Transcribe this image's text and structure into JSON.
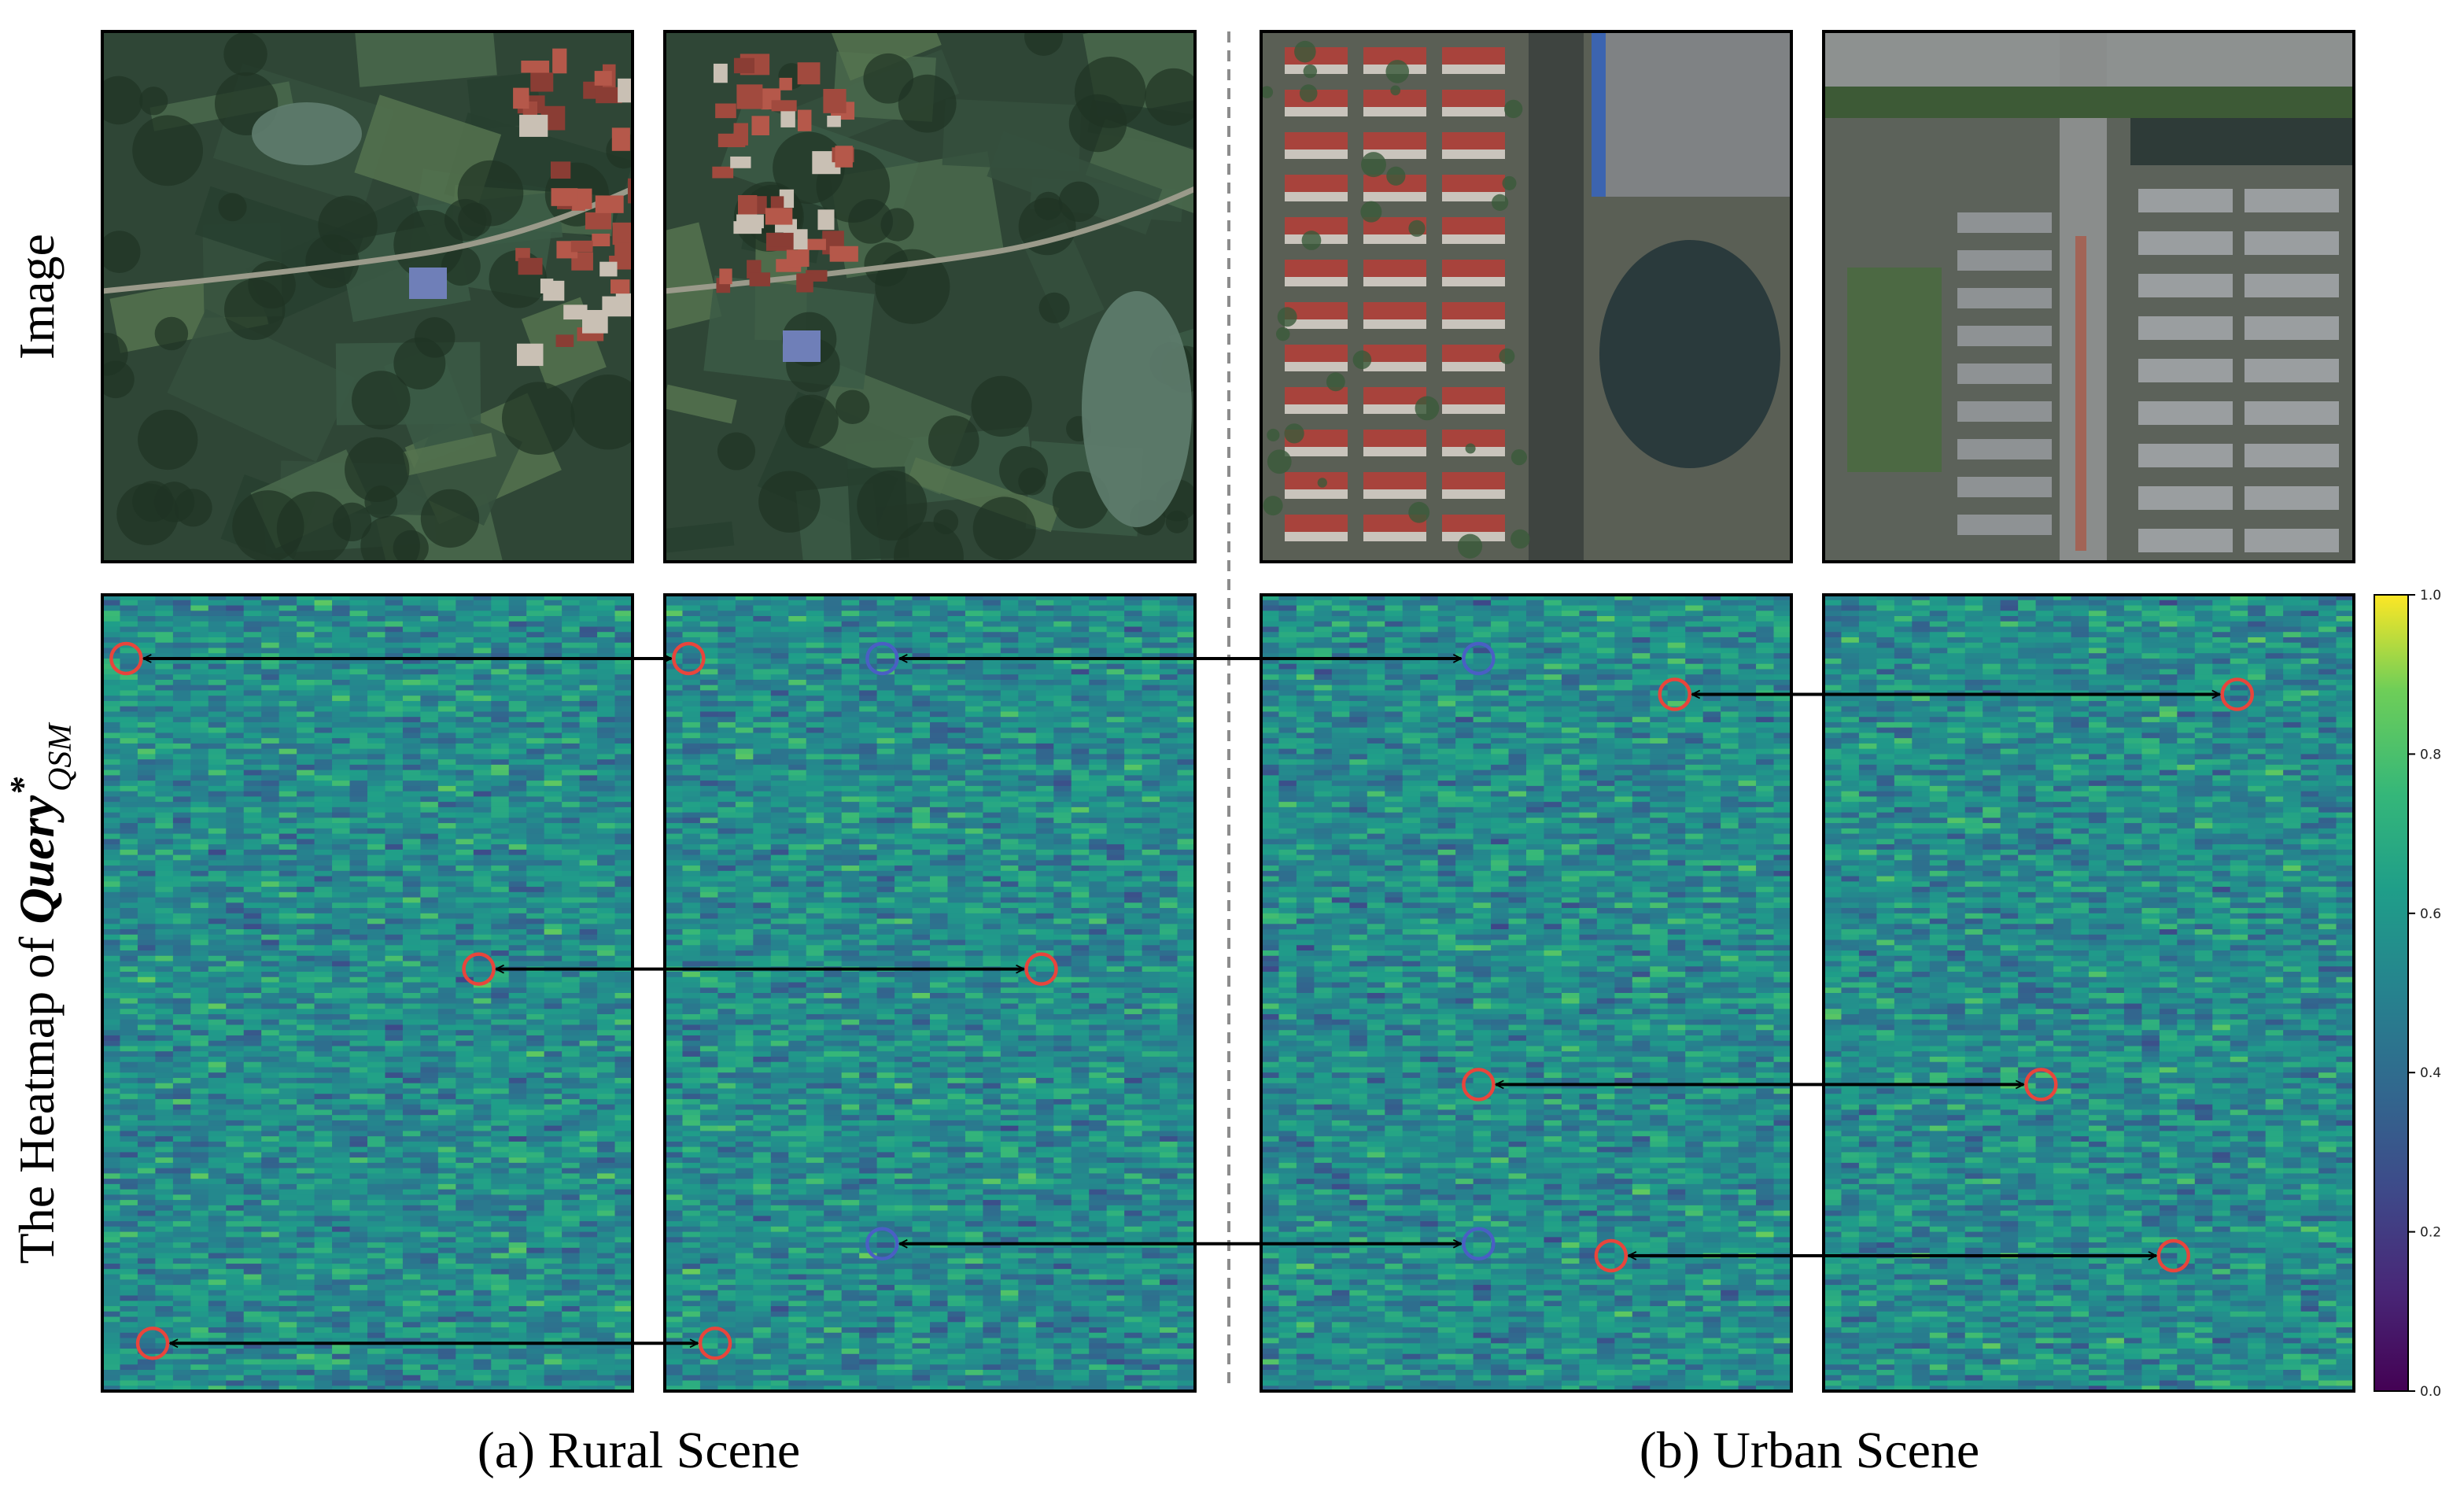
{
  "row_labels": {
    "image": "Image",
    "heatmap_prefix": "The Heatmap of ",
    "heatmap_symbol": "Query",
    "heatmap_superscript": "*",
    "heatmap_subscript": "QSM"
  },
  "captions": {
    "rural": "(a) Rural Scene",
    "urban": "(b) Urban Scene"
  },
  "scenes": [
    {
      "group": "rural",
      "name": "rural-1",
      "kind": "rural"
    },
    {
      "group": "rural",
      "name": "rural-2",
      "kind": "rural"
    },
    {
      "group": "urban",
      "name": "urban-1",
      "kind": "urban-a"
    },
    {
      "group": "urban",
      "name": "urban-2",
      "kind": "urban-b"
    }
  ],
  "colorbar": {
    "colormap": "viridis",
    "range": [
      0.0,
      1.0
    ],
    "ticks": [
      "1.0",
      "0.8",
      "0.6",
      "0.4",
      "0.2",
      "0.0"
    ]
  },
  "colors": {
    "red_marker": "#e8453c",
    "blue_marker": "#4a5fc4",
    "arrow": "#000000",
    "divider": "#8c8c8c"
  },
  "correspondences": [
    {
      "from": "rural-1",
      "to": "rural-2",
      "marker": "red",
      "row": 0.08
    },
    {
      "from": "rural-2",
      "to": "urban-1",
      "marker": "blue",
      "row": 0.08
    },
    {
      "from": "urban-1",
      "to": "urban-2",
      "marker": "red",
      "row": 0.125
    },
    {
      "from": "rural-1",
      "to": "rural-2",
      "marker": "red",
      "row": 0.47
    },
    {
      "from": "urban-1",
      "to": "urban-2",
      "marker": "red",
      "row": 0.615
    },
    {
      "from": "rural-2",
      "to": "urban-1",
      "marker": "blue",
      "row": 0.815
    },
    {
      "from": "urban-1",
      "to": "urban-2",
      "marker": "red",
      "row": 0.83
    },
    {
      "from": "rural-1",
      "to": "rural-2",
      "marker": "red",
      "row": 0.94
    }
  ]
}
